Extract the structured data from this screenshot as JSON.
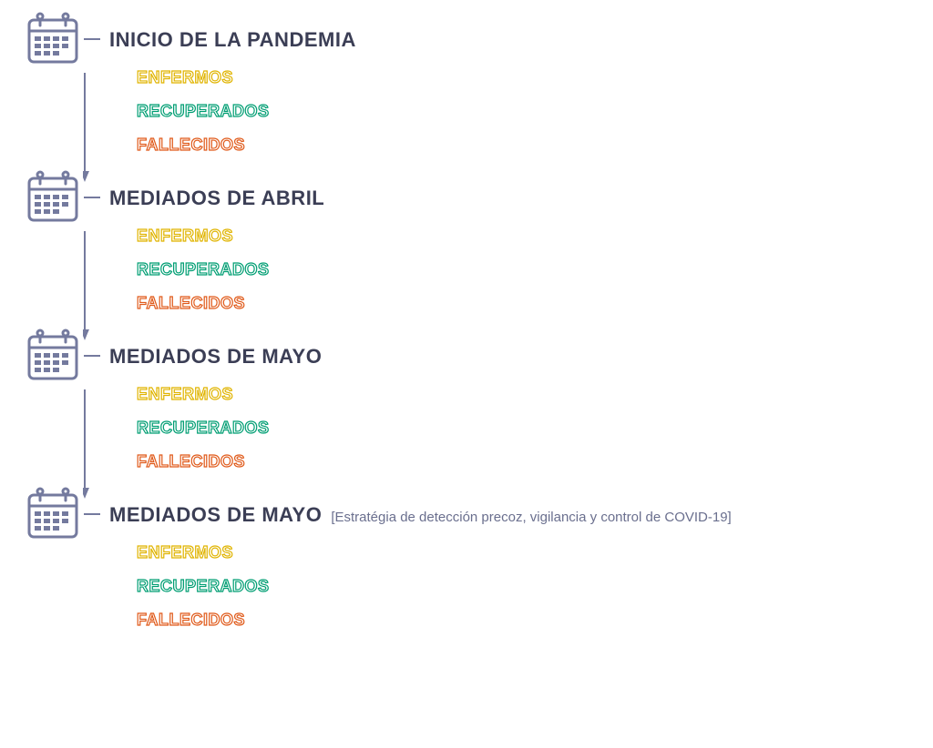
{
  "colors": {
    "icon_stroke": "#747a9e",
    "title_color": "#3b3e55",
    "subtitle_color": "#6a6f8e",
    "enfermos": "#e0b400",
    "recuperados": "#009e73",
    "fallecidos": "#e05a1a",
    "background": "#ffffff"
  },
  "layout": {
    "icon_size": 64,
    "icon_col_width": 100,
    "arrow_height": 120,
    "title_fontsize": 22,
    "subtitle_fontsize": 15,
    "category_fontsize": 18,
    "category_stroke_width": 1.2
  },
  "periods": [
    {
      "title": "INICIO DE LA PANDEMIA",
      "subtitle": "",
      "categories": [
        {
          "type": "enfermos",
          "label": "ENFERMOS"
        },
        {
          "type": "recuperados",
          "label": "RECUPERADOS"
        },
        {
          "type": "fallecidos",
          "label": "FALLECIDOS"
        }
      ],
      "has_arrow": true
    },
    {
      "title": "MEDIADOS DE ABRIL",
      "subtitle": "",
      "categories": [
        {
          "type": "enfermos",
          "label": "ENFERMOS"
        },
        {
          "type": "recuperados",
          "label": "RECUPERADOS"
        },
        {
          "type": "fallecidos",
          "label": "FALLECIDOS"
        }
      ],
      "has_arrow": true
    },
    {
      "title": "MEDIADOS DE MAYO",
      "subtitle": "",
      "categories": [
        {
          "type": "enfermos",
          "label": "ENFERMOS"
        },
        {
          "type": "recuperados",
          "label": "RECUPERADOS"
        },
        {
          "type": "fallecidos",
          "label": "FALLECIDOS"
        }
      ],
      "has_arrow": true
    },
    {
      "title": "MEDIADOS DE MAYO",
      "subtitle": "[Estratégia de detección precoz, vigilancia y control de COVID-19]",
      "categories": [
        {
          "type": "enfermos",
          "label": "ENFERMOS"
        },
        {
          "type": "recuperados",
          "label": "RECUPERADOS"
        },
        {
          "type": "fallecidos",
          "label": "FALLECIDOS"
        }
      ],
      "has_arrow": false
    }
  ]
}
